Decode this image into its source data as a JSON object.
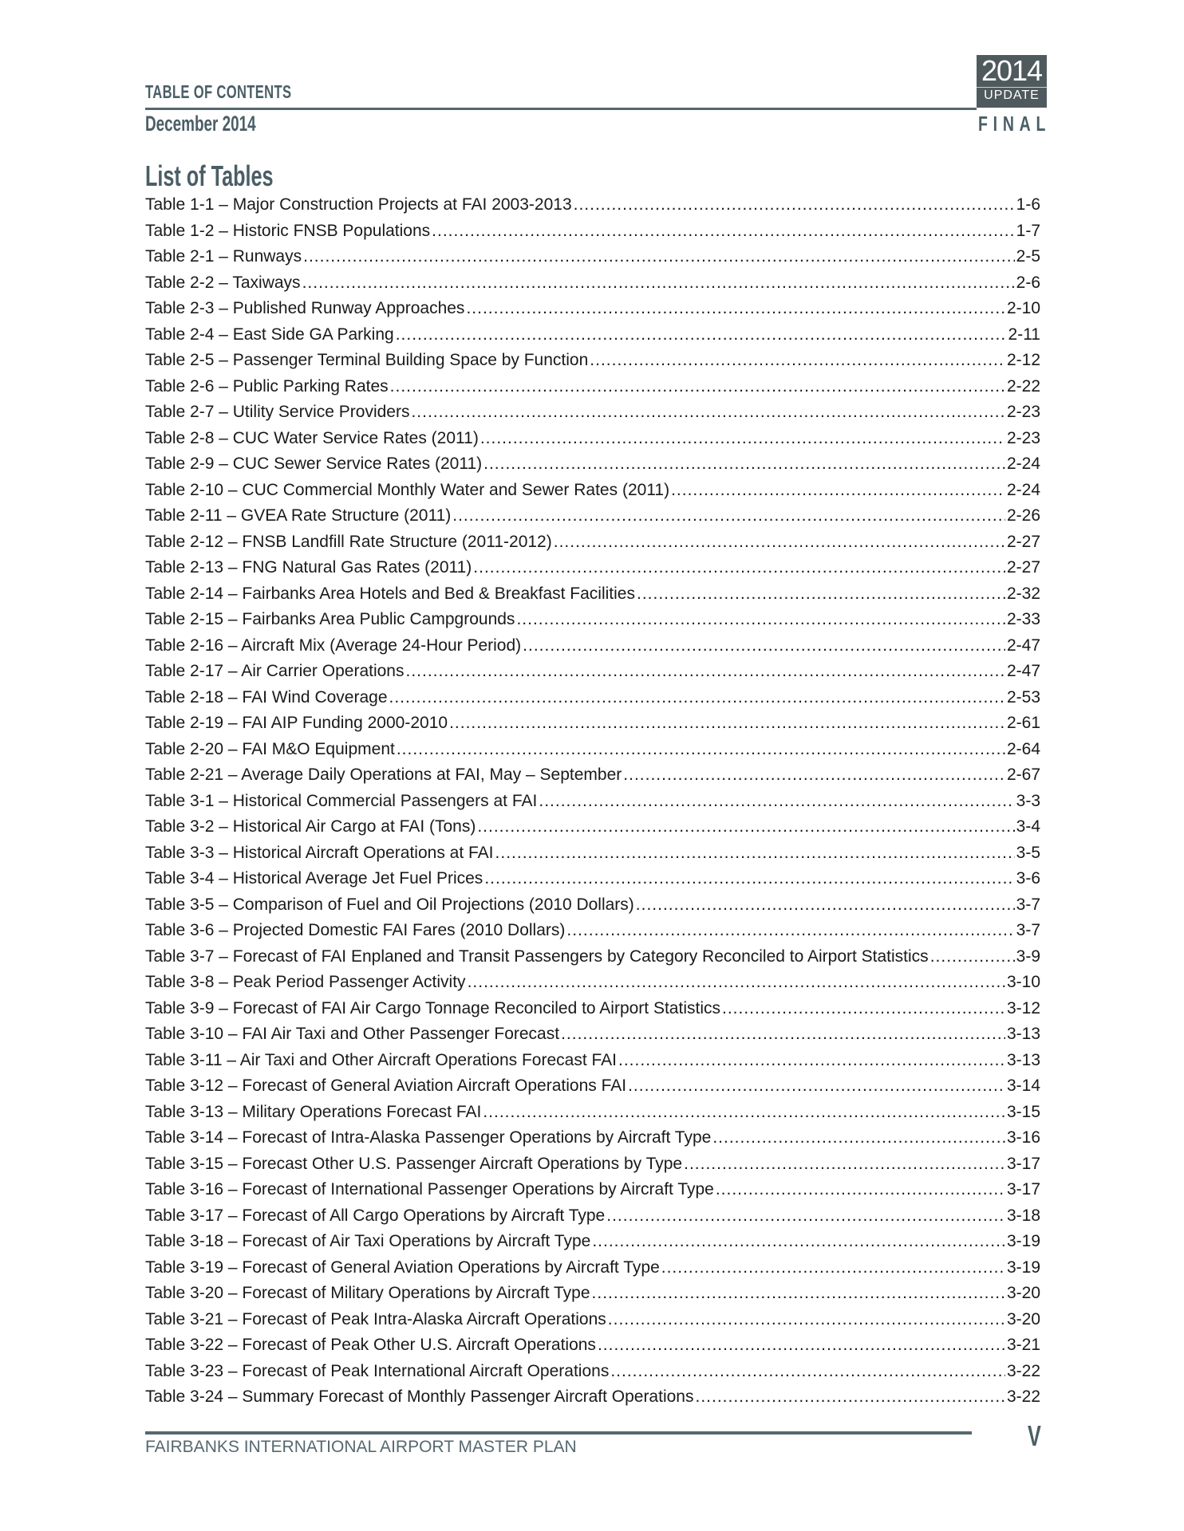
{
  "header": {
    "title": "TABLE OF CONTENTS",
    "date": "December 2014",
    "badge_year": "2014",
    "badge_update": "UPDATE",
    "final": "FINAL"
  },
  "section_title": "List of Tables",
  "entries": [
    {
      "label": "Table 1-1 – Major Construction Projects at FAI 2003-2013",
      "page": "1-6"
    },
    {
      "label": "Table 1-2 – Historic FNSB Populations",
      "page": "1-7"
    },
    {
      "label": "Table 2-1 – Runways",
      "page": "2-5"
    },
    {
      "label": "Table 2-2 – Taxiways",
      "page": "2-6"
    },
    {
      "label": "Table 2-3 – Published Runway Approaches",
      "page": "2-10"
    },
    {
      "label": "Table 2-4 – East Side GA Parking",
      "page": "2-11"
    },
    {
      "label": "Table 2-5 – Passenger Terminal Building Space by Function",
      "page": "2-12"
    },
    {
      "label": "Table 2-6 – Public Parking Rates",
      "page": "2-22"
    },
    {
      "label": "Table 2-7 – Utility Service Providers",
      "page": "2-23"
    },
    {
      "label": "Table 2-8 – CUC Water Service Rates (2011)",
      "page": "2-23"
    },
    {
      "label": "Table 2-9 – CUC Sewer Service Rates (2011)",
      "page": "2-24"
    },
    {
      "label": "Table 2-10 – CUC Commercial Monthly Water and Sewer Rates (2011)",
      "page": "2-24"
    },
    {
      "label": "Table 2-11 – GVEA Rate Structure (2011)",
      "page": "2-26"
    },
    {
      "label": "Table 2-12 – FNSB Landfill Rate Structure (2011-2012)",
      "page": "2-27"
    },
    {
      "label": "Table 2-13 – FNG Natural Gas Rates (2011)",
      "page": "2-27"
    },
    {
      "label": "Table 2-14 – Fairbanks Area Hotels and Bed & Breakfast Facilities",
      "page": "2-32"
    },
    {
      "label": "Table 2-15 – Fairbanks Area Public Campgrounds",
      "page": "2-33"
    },
    {
      "label": "Table 2-16 – Aircraft Mix (Average 24-Hour Period)",
      "page": "2-47"
    },
    {
      "label": "Table 2-17 – Air Carrier Operations",
      "page": "2-47"
    },
    {
      "label": "Table 2-18 – FAI Wind Coverage",
      "page": "2-53"
    },
    {
      "label": "Table 2-19 – FAI AIP Funding 2000-2010",
      "page": "2-61"
    },
    {
      "label": "Table 2-20 – FAI M&O Equipment",
      "page": "2-64"
    },
    {
      "label": "Table 2-21 – Average Daily Operations at FAI, May – September",
      "page": "2-67"
    },
    {
      "label": "Table 3-1 – Historical Commercial Passengers at FAI",
      "page": "3-3"
    },
    {
      "label": "Table 3-2 – Historical Air Cargo at FAI (Tons)",
      "page": "3-4"
    },
    {
      "label": "Table 3-3 – Historical Aircraft Operations at FAI",
      "page": "3-5"
    },
    {
      "label": "Table 3-4 – Historical Average Jet Fuel Prices",
      "page": "3-6"
    },
    {
      "label": "Table 3-5 – Comparison of Fuel and Oil Projections (2010 Dollars)",
      "page": "3-7"
    },
    {
      "label": "Table 3-6 – Projected Domestic FAI Fares (2010 Dollars)",
      "page": "3-7"
    },
    {
      "label": "Table 3-7 – Forecast of FAI Enplaned and Transit Passengers by Category Reconciled to Airport Statistics",
      "page": "3-9"
    },
    {
      "label": "Table 3-8 – Peak Period Passenger Activity",
      "page": "3-10"
    },
    {
      "label": "Table 3-9 – Forecast of FAI Air Cargo Tonnage Reconciled to Airport Statistics",
      "page": "3-12"
    },
    {
      "label": "Table 3-10 – FAI Air Taxi and Other Passenger Forecast",
      "page": "3-13"
    },
    {
      "label": "Table 3-11 – Air Taxi and Other Aircraft Operations Forecast FAI",
      "page": "3-13"
    },
    {
      "label": "Table 3-12 – Forecast of General Aviation Aircraft Operations FAI",
      "page": "3-14"
    },
    {
      "label": "Table 3-13 – Military Operations Forecast FAI",
      "page": "3-15"
    },
    {
      "label": "Table 3-14 – Forecast of Intra-Alaska Passenger Operations by Aircraft Type",
      "page": "3-16"
    },
    {
      "label": "Table 3-15 – Forecast Other U.S. Passenger Aircraft Operations by Type",
      "page": "3-17"
    },
    {
      "label": "Table 3-16 – Forecast of International Passenger Operations by Aircraft Type",
      "page": "3-17"
    },
    {
      "label": "Table 3-17 – Forecast of All Cargo Operations by Aircraft Type",
      "page": "3-18"
    },
    {
      "label": "Table 3-18 – Forecast of Air Taxi Operations by Aircraft Type",
      "page": "3-19"
    },
    {
      "label": "Table 3-19 – Forecast of General Aviation Operations by Aircraft Type",
      "page": "3-19"
    },
    {
      "label": "Table 3-20 – Forecast of Military Operations by Aircraft Type",
      "page": "3-20"
    },
    {
      "label": "Table 3-21 – Forecast of Peak Intra-Alaska Aircraft Operations",
      "page": "3-20"
    },
    {
      "label": "Table 3-22 – Forecast of Peak Other U.S. Aircraft Operations",
      "page": "3-21"
    },
    {
      "label": "Table 3-23 – Forecast of Peak International Aircraft Operations",
      "page": "3-22"
    },
    {
      "label": "Table 3-24 – Summary Forecast of Monthly Passenger Aircraft Operations",
      "page": "3-22"
    }
  ],
  "footer": {
    "text": "FAIRBANKS INTERNATIONAL AIRPORT MASTER PLAN",
    "page_number": "V"
  }
}
